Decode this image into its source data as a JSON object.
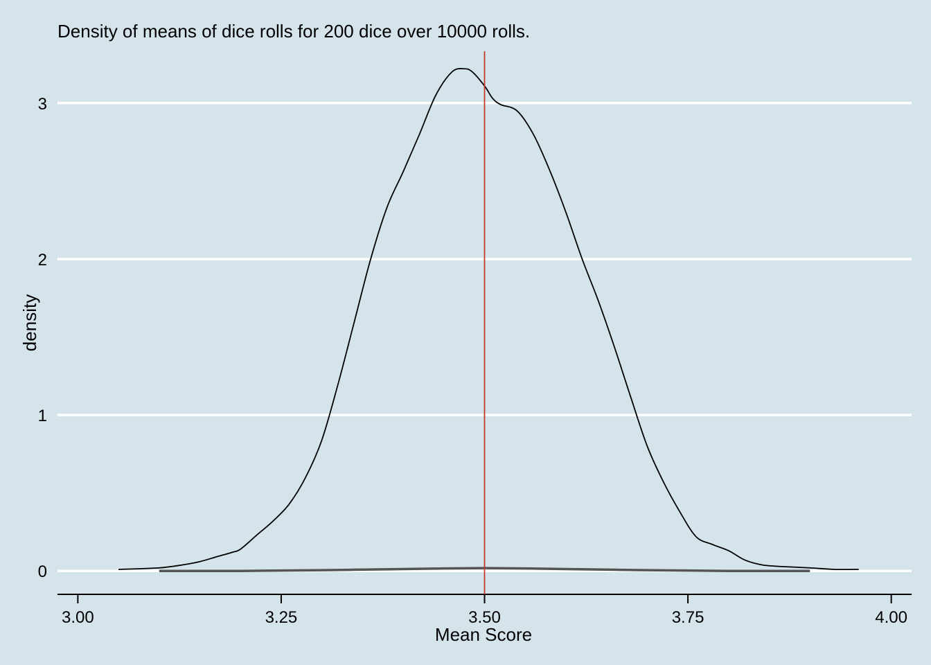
{
  "chart_data": {
    "type": "line",
    "title": "Density of means of dice rolls for 200 dice over 10000 rolls.",
    "xlabel": "Mean Score",
    "ylabel": "density",
    "xlim": [
      2.975,
      4.025
    ],
    "ylim": [
      -0.15,
      3.35
    ],
    "x_ticks": [
      3.0,
      3.25,
      3.5,
      3.75,
      4.0
    ],
    "x_tick_labels": [
      "3.00",
      "3.25",
      "3.50",
      "3.75",
      "4.00"
    ],
    "y_ticks": [
      0,
      1,
      2,
      3
    ],
    "y_tick_labels": [
      "0",
      "1",
      "2",
      "3"
    ],
    "grid": "horizontal",
    "legend": "none",
    "reference_line": {
      "x": 3.5,
      "color": "#c0392b"
    },
    "series": [
      {
        "kind": "density",
        "color": "#000000",
        "x": [
          3.05,
          3.1,
          3.13,
          3.15,
          3.17,
          3.19,
          3.2,
          3.22,
          3.24,
          3.26,
          3.28,
          3.3,
          3.32,
          3.34,
          3.36,
          3.38,
          3.4,
          3.42,
          3.44,
          3.46,
          3.475,
          3.485,
          3.5,
          3.51,
          3.52,
          3.54,
          3.56,
          3.58,
          3.6,
          3.62,
          3.64,
          3.66,
          3.68,
          3.7,
          3.72,
          3.74,
          3.76,
          3.78,
          3.8,
          3.82,
          3.84,
          3.86,
          3.9,
          3.93,
          3.96
        ],
        "y": [
          0.01,
          0.02,
          0.04,
          0.06,
          0.09,
          0.12,
          0.14,
          0.23,
          0.32,
          0.43,
          0.6,
          0.84,
          1.2,
          1.6,
          2.0,
          2.33,
          2.56,
          2.8,
          3.05,
          3.2,
          3.22,
          3.2,
          3.11,
          3.03,
          2.99,
          2.95,
          2.8,
          2.57,
          2.3,
          2.0,
          1.73,
          1.43,
          1.11,
          0.8,
          0.57,
          0.38,
          0.22,
          0.17,
          0.13,
          0.07,
          0.04,
          0.03,
          0.02,
          0.01,
          0.01
        ]
      },
      {
        "kind": "density",
        "color": "#555555",
        "x": [
          3.1,
          3.2,
          3.3,
          3.4,
          3.45,
          3.5,
          3.55,
          3.6,
          3.7,
          3.8,
          3.9
        ],
        "y": [
          0.0,
          0.0,
          0.005,
          0.012,
          0.016,
          0.018,
          0.016,
          0.012,
          0.005,
          0.0,
          0.0
        ]
      }
    ]
  }
}
